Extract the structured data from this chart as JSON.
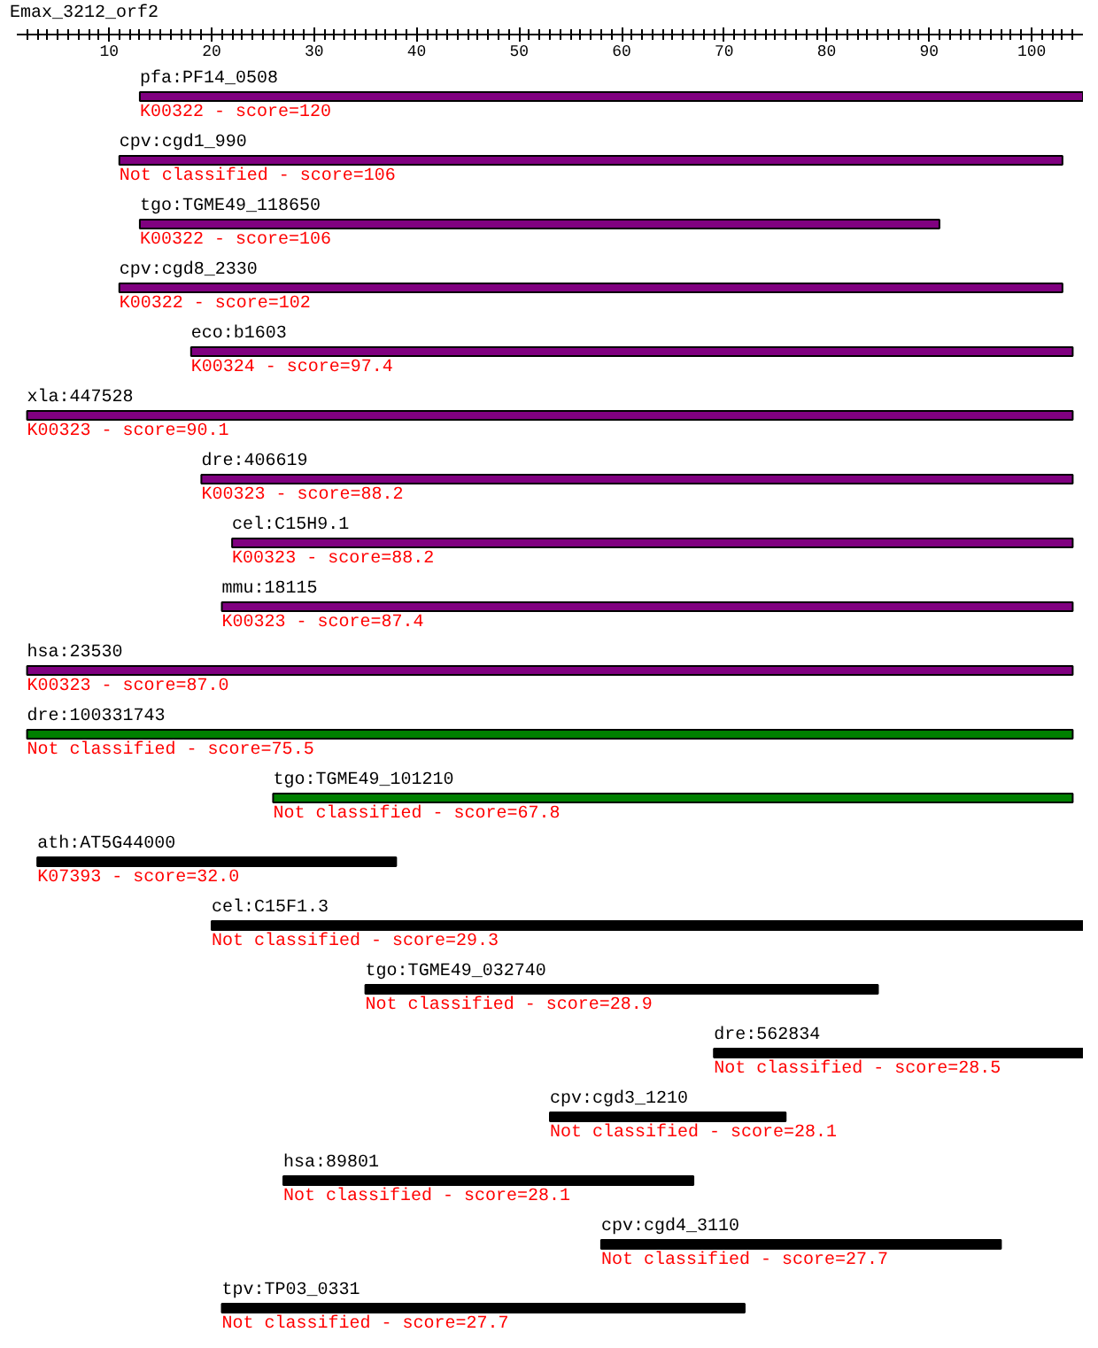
{
  "chart_data": {
    "type": "bar",
    "orientation": "horizontal",
    "title": "Emax_3212_orf2",
    "categories": [
      "pfa:PF14_0508",
      "cpv:cgd1_990",
      "tgo:TGME49_118650",
      "cpv:cgd8_2330",
      "eco:b1603",
      "xla:447528",
      "dre:406619",
      "cel:C15H9.1",
      "mmu:18115",
      "hsa:23530",
      "dre:100331743",
      "tgo:TGME49_101210",
      "ath:AT5G44000",
      "cel:C15F1.3",
      "tgo:TGME49_032740",
      "dre:562834",
      "cpv:cgd3_1210",
      "hsa:89801",
      "cpv:cgd4_3110",
      "tpv:TP03_0331"
    ],
    "base": [
      13,
      11,
      13,
      11,
      18,
      2,
      19,
      22,
      21,
      2,
      2,
      26,
      3,
      20,
      35,
      69,
      53,
      27,
      58,
      21
    ],
    "values": [
      92,
      92,
      78,
      92,
      86,
      102,
      85,
      82,
      83,
      102,
      102,
      78,
      35,
      85,
      50,
      36,
      23,
      40,
      39,
      51
    ],
    "colors": [
      "#800080",
      "#800080",
      "#800080",
      "#800080",
      "#800080",
      "#800080",
      "#800080",
      "#800080",
      "#800080",
      "#800080",
      "#008000",
      "#008000",
      "#000000",
      "#000000",
      "#000000",
      "#000000",
      "#000000",
      "#000000",
      "#000000",
      "#000000"
    ],
    "xlim": [
      1,
      105
    ],
    "xticks": [
      {
        "value": 2,
        "label": null
      },
      {
        "value": 3,
        "label": null
      },
      {
        "value": 4,
        "label": null
      },
      {
        "value": 5,
        "label": null
      },
      {
        "value": 6,
        "label": null
      },
      {
        "value": 7,
        "label": null
      },
      {
        "value": 8,
        "label": null
      },
      {
        "value": 9,
        "label": null
      },
      10,
      {
        "value": 11,
        "label": null
      },
      {
        "value": 12,
        "label": null
      },
      {
        "value": 13,
        "label": null
      },
      {
        "value": 14,
        "label": null
      },
      {
        "value": 15,
        "label": null
      },
      {
        "value": 16,
        "label": null
      },
      {
        "value": 17,
        "label": null
      },
      {
        "value": 18,
        "label": null
      },
      {
        "value": 19,
        "label": null
      },
      20,
      {
        "value": 21,
        "label": null
      },
      {
        "value": 22,
        "label": null
      },
      {
        "value": 23,
        "label": null
      },
      {
        "value": 24,
        "label": null
      },
      {
        "value": 25,
        "label": null
      },
      {
        "value": 26,
        "label": null
      },
      {
        "value": 27,
        "label": null
      },
      {
        "value": 28,
        "label": null
      },
      {
        "value": 29,
        "label": null
      },
      30,
      {
        "value": 31,
        "label": null
      },
      {
        "value": 32,
        "label": null
      },
      {
        "value": 33,
        "label": null
      },
      {
        "value": 34,
        "label": null
      },
      {
        "value": 35,
        "label": null
      },
      {
        "value": 36,
        "label": null
      },
      {
        "value": 37,
        "label": null
      },
      {
        "value": 38,
        "label": null
      },
      {
        "value": 39,
        "label": null
      },
      40,
      {
        "value": 41,
        "label": null
      },
      {
        "value": 42,
        "label": null
      },
      {
        "value": 43,
        "label": null
      },
      {
        "value": 44,
        "label": null
      },
      {
        "value": 45,
        "label": null
      },
      {
        "value": 46,
        "label": null
      },
      {
        "value": 47,
        "label": null
      },
      {
        "value": 48,
        "label": null
      },
      {
        "value": 49,
        "label": null
      },
      50,
      {
        "value": 51,
        "label": null
      },
      {
        "value": 52,
        "label": null
      },
      {
        "value": 53,
        "label": null
      },
      {
        "value": 54,
        "label": null
      },
      {
        "value": 55,
        "label": null
      },
      {
        "value": 56,
        "label": null
      },
      {
        "value": 57,
        "label": null
      },
      {
        "value": 58,
        "label": null
      },
      {
        "value": 59,
        "label": null
      },
      60,
      {
        "value": 61,
        "label": null
      },
      {
        "value": 62,
        "label": null
      },
      {
        "value": 63,
        "label": null
      },
      {
        "value": 64,
        "label": null
      },
      {
        "value": 65,
        "label": null
      },
      {
        "value": 66,
        "label": null
      },
      {
        "value": 67,
        "label": null
      },
      {
        "value": 68,
        "label": null
      },
      {
        "value": 69,
        "label": null
      },
      70,
      {
        "value": 71,
        "label": null
      },
      {
        "value": 72,
        "label": null
      },
      {
        "value": 73,
        "label": null
      },
      {
        "value": 74,
        "label": null
      },
      {
        "value": 75,
        "label": null
      },
      {
        "value": 76,
        "label": null
      },
      {
        "value": 77,
        "label": null
      },
      {
        "value": 78,
        "label": null
      },
      {
        "value": 79,
        "label": null
      },
      80,
      {
        "value": 81,
        "label": null
      },
      {
        "value": 82,
        "label": null
      },
      {
        "value": 83,
        "label": null
      },
      {
        "value": 84,
        "label": null
      },
      {
        "value": 85,
        "label": null
      },
      {
        "value": 86,
        "label": null
      },
      {
        "value": 87,
        "label": null
      },
      {
        "value": 88,
        "label": null
      },
      {
        "value": 89,
        "label": null
      },
      90,
      {
        "value": 91,
        "label": null
      },
      {
        "value": 92,
        "label": null
      },
      {
        "value": 93,
        "label": null
      },
      {
        "value": 94,
        "label": null
      },
      {
        "value": 95,
        "label": null
      },
      {
        "value": 96,
        "label": null
      },
      {
        "value": 97,
        "label": null
      },
      {
        "value": 98,
        "label": null
      },
      {
        "value": 99,
        "label": null
      },
      100,
      {
        "value": 101,
        "label": null
      },
      {
        "value": 102,
        "label": null
      },
      {
        "value": 103,
        "label": null
      },
      {
        "value": 104,
        "label": null
      }
    ],
    "annotations": [
      "K00322 - score=120",
      "Not classified - score=106",
      "K00322 - score=106",
      "K00322 - score=102",
      "K00324 - score=97.4",
      "K00323 - score=90.1",
      "K00323 - score=88.2",
      "K00323 - score=88.2",
      "K00323 - score=87.4",
      "K00323 - score=87.0",
      "Not classified - score=75.5",
      "Not classified - score=67.8",
      "K07393 - score=32.0",
      "Not classified - score=29.3",
      "Not classified - score=28.9",
      "Not classified - score=28.5",
      "Not classified - score=28.1",
      "Not classified - score=28.1",
      "Not classified - score=27.7",
      "Not classified - score=27.7"
    ]
  }
}
